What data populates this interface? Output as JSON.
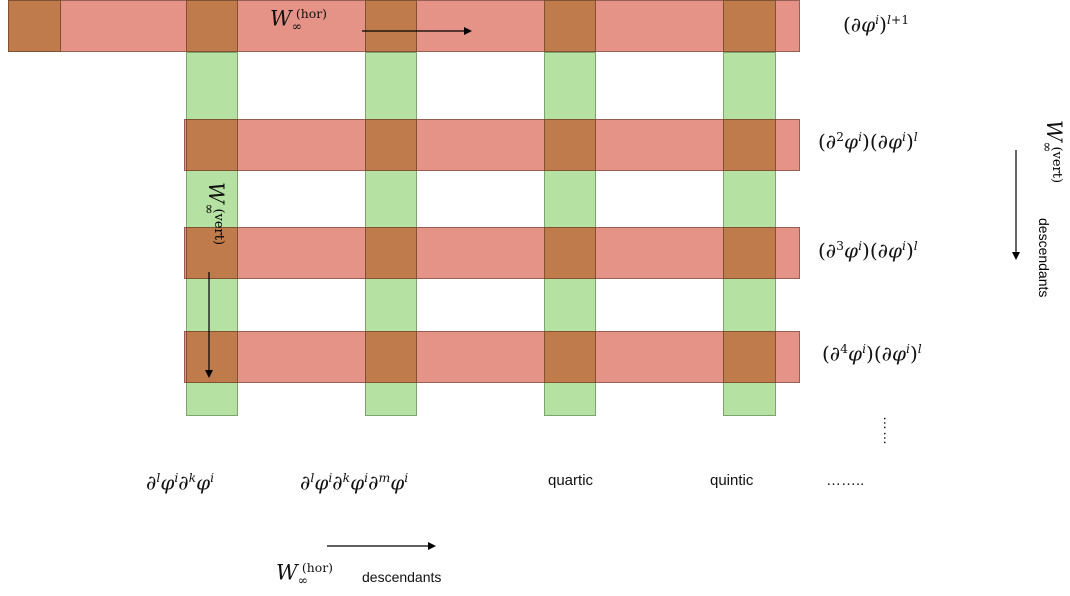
{
  "rows": [
    {
      "label": "(∂ϕⁱ)ˡ⁺¹",
      "html": "(&part;<span class='it'>&phi;</span><sup><i>i</i></sup>)<sup><i>l</i>+1</sup>"
    },
    {
      "label": "(∂²ϕⁱ)(∂ϕⁱ)ˡ",
      "html": "(&part;<sup>2</sup><span class='it'>&phi;</span><sup><i>i</i></sup>)(&part;<span class='it'>&phi;</span><sup><i>i</i></sup>)<sup><i>l</i></sup>"
    },
    {
      "label": "(∂³ϕⁱ)(∂ϕⁱ)ˡ",
      "html": "(&part;<sup>3</sup><span class='it'>&phi;</span><sup><i>i</i></sup>)(&part;<span class='it'>&phi;</span><sup><i>i</i></sup>)<sup><i>l</i></sup>"
    },
    {
      "label": "(∂⁴ϕⁱ)(∂ϕⁱ)ˡ",
      "html": "(&part;<sup>4</sup><span class='it'>&phi;</span><sup><i>i</i></sup>)(&part;<span class='it'>&phi;</span><sup><i>i</i></sup>)<sup><i>l</i></sup>"
    }
  ],
  "columns": [
    {
      "label": "∂ˡϕⁱ∂ᵏϕⁱ"
    },
    {
      "label": "∂ˡϕⁱ∂ᵏϕⁱ∂ᵐϕⁱ"
    },
    {
      "label": "quartic"
    },
    {
      "label": "quintic"
    },
    {
      "label": "…….."
    }
  ],
  "vertical_ellipsis": "……",
  "w_hor": {
    "symbol": "W",
    "sub": "∞",
    "sup": "(hor)"
  },
  "w_vert": {
    "symbol": "W",
    "sub": "∞",
    "sup": "(vert)"
  },
  "descendants": "descendants",
  "colors": {
    "row_band": "#e0897a",
    "column_band": "#b6dd9f",
    "overlap": "#bf7b4b"
  }
}
